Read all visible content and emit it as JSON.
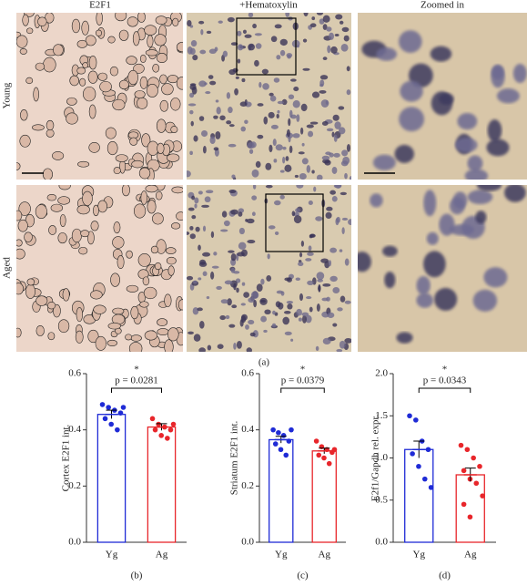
{
  "figure": {
    "columns": [
      "E2F1",
      "+Hematoxylin",
      "Zoomed in"
    ],
    "rows": [
      "Young",
      "Aged"
    ],
    "panel_label": "(a)"
  },
  "chart_data": [
    {
      "type": "bar",
      "panel_label": "(b)",
      "ylabel": "Cortex E2F1 int.",
      "categories": [
        "Yg",
        "Ag"
      ],
      "values": [
        0.455,
        0.41
      ],
      "errors": [
        0.015,
        0.012
      ],
      "colors": [
        "#1f2bd6",
        "#e8262b"
      ],
      "points": [
        [
          0.49,
          0.48,
          0.47,
          0.46,
          0.44,
          0.42,
          0.4,
          0.48
        ],
        [
          0.44,
          0.42,
          0.41,
          0.4,
          0.4,
          0.38,
          0.37,
          0.42
        ]
      ],
      "ylim": [
        0,
        0.6
      ],
      "yticks": [
        {
          "value": 0,
          "label": "0.0"
        },
        0.2,
        0.4,
        0.6
      ],
      "annotation": "p = 0.0281",
      "significance": "*"
    },
    {
      "type": "bar",
      "panel_label": "(c)",
      "ylabel": "Striatum E2F1 int.",
      "categories": [
        "Yg",
        "Ag"
      ],
      "values": [
        0.365,
        0.325
      ],
      "errors": [
        0.012,
        0.01
      ],
      "colors": [
        "#1f2bd6",
        "#e8262b"
      ],
      "points": [
        [
          0.4,
          0.39,
          0.38,
          0.36,
          0.35,
          0.33,
          0.31,
          0.4
        ],
        [
          0.36,
          0.34,
          0.33,
          0.32,
          0.31,
          0.3,
          0.28,
          0.33
        ]
      ],
      "ylim": [
        0,
        0.6
      ],
      "yticks": [
        {
          "value": 0,
          "label": "0.0"
        },
        0.2,
        0.4,
        0.6
      ],
      "annotation": "p = 0.0379",
      "significance": "*"
    },
    {
      "type": "bar",
      "panel_label": "(d)",
      "ylabel": "E2f1/Gapdh rel. expr.",
      "categories": [
        "Yg",
        "Ag"
      ],
      "values": [
        1.1,
        0.8
      ],
      "errors": [
        0.1,
        0.08
      ],
      "colors": [
        "#1f2bd6",
        "#e8262b"
      ],
      "points": [
        [
          1.5,
          1.45,
          1.2,
          1.1,
          1.05,
          0.9,
          0.75,
          0.65
        ],
        [
          1.15,
          1.1,
          1.0,
          0.9,
          0.85,
          0.75,
          0.7,
          0.55,
          0.45,
          0.3
        ]
      ],
      "ylim": [
        0,
        2
      ],
      "yticks": [
        {
          "value": 0,
          "label": "0.0"
        },
        0.5,
        {
          "value": 1,
          "label": "1.0"
        },
        1.5,
        {
          "value": 2,
          "label": "2.0"
        }
      ],
      "annotation": "p = 0.0343",
      "significance": "*"
    }
  ]
}
